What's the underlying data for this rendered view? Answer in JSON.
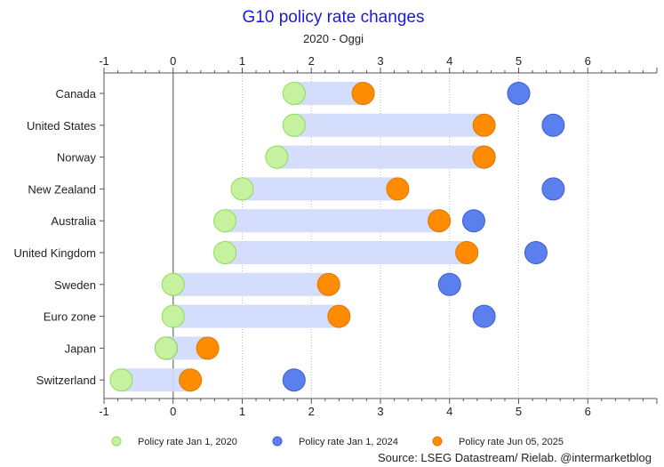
{
  "chart_data": {
    "type": "dumbbell",
    "title": "G10 policy rate changes",
    "subtitle": "2020 - Oggi",
    "xlim": [
      -1,
      7
    ],
    "xticks": [
      -1,
      0,
      1,
      2,
      3,
      4,
      5,
      6
    ],
    "grid": "vertical dotted",
    "legend_position": "bottom",
    "categories": [
      "Canada",
      "United States",
      "Norway",
      "New Zealand",
      "Australia",
      "United Kingdom",
      "Sweden",
      "Euro zone",
      "Japan",
      "Switzerland"
    ],
    "series": [
      {
        "name": "Policy rate Jan 1, 2020",
        "color": "#c6f2a0",
        "values": [
          1.75,
          1.75,
          1.5,
          1.0,
          0.75,
          0.75,
          0.0,
          0.0,
          -0.1,
          -0.75
        ]
      },
      {
        "name": "Policy rate Jan 1, 2024",
        "color": "#5b80ee",
        "values": [
          5.0,
          5.5,
          4.5,
          5.5,
          4.35,
          5.25,
          4.0,
          4.5,
          -0.1,
          1.75
        ]
      },
      {
        "name": "Policy rate Jun 05, 2025",
        "color": "#ff8c00",
        "values": [
          2.75,
          4.5,
          4.5,
          3.25,
          3.85,
          4.25,
          2.25,
          2.4,
          0.5,
          0.25
        ]
      }
    ],
    "range_band": {
      "from_series": 0,
      "to_series": 2,
      "color": "#cfd9fb"
    },
    "source": "Source: LSEG Datastream/ Rielab. @intermarketblog"
  }
}
